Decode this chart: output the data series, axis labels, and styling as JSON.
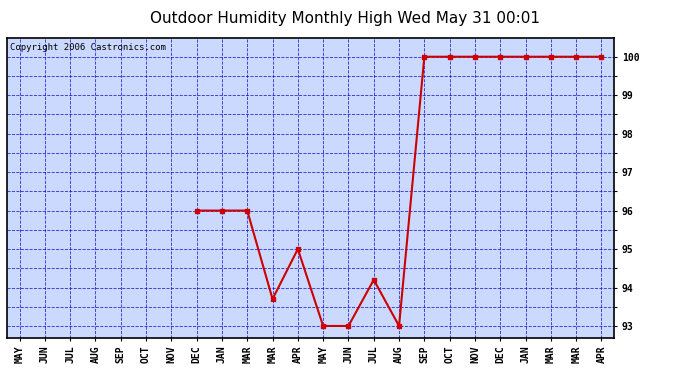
{
  "title": "Outdoor Humidity Monthly High Wed May 31 00:01",
  "copyright": "Copyright 2006 Castronics.com",
  "x_labels": [
    "MAY",
    "JUN",
    "JUL",
    "AUG",
    "SEP",
    "OCT",
    "NOV",
    "DEC",
    "JAN",
    "MAR",
    "MAR",
    "APR",
    "MAY",
    "JUN",
    "JUL",
    "AUG",
    "SEP",
    "OCT",
    "NOV",
    "DEC",
    "JAN",
    "MAR",
    "MAR",
    "APR"
  ],
  "y_values": [
    null,
    null,
    null,
    null,
    null,
    null,
    null,
    96,
    96,
    96,
    93.7,
    95,
    93,
    93,
    94.2,
    93,
    100,
    100,
    100,
    100,
    100,
    100,
    100,
    100
  ],
  "ylim_min": 92.7,
  "ylim_max": 100.5,
  "line_color": "#cc0000",
  "bg_color": "#ccd9ff",
  "grid_color": "#0000cc",
  "title_fontsize": 11,
  "copyright_fontsize": 6.5,
  "tick_label_fontsize": 7
}
